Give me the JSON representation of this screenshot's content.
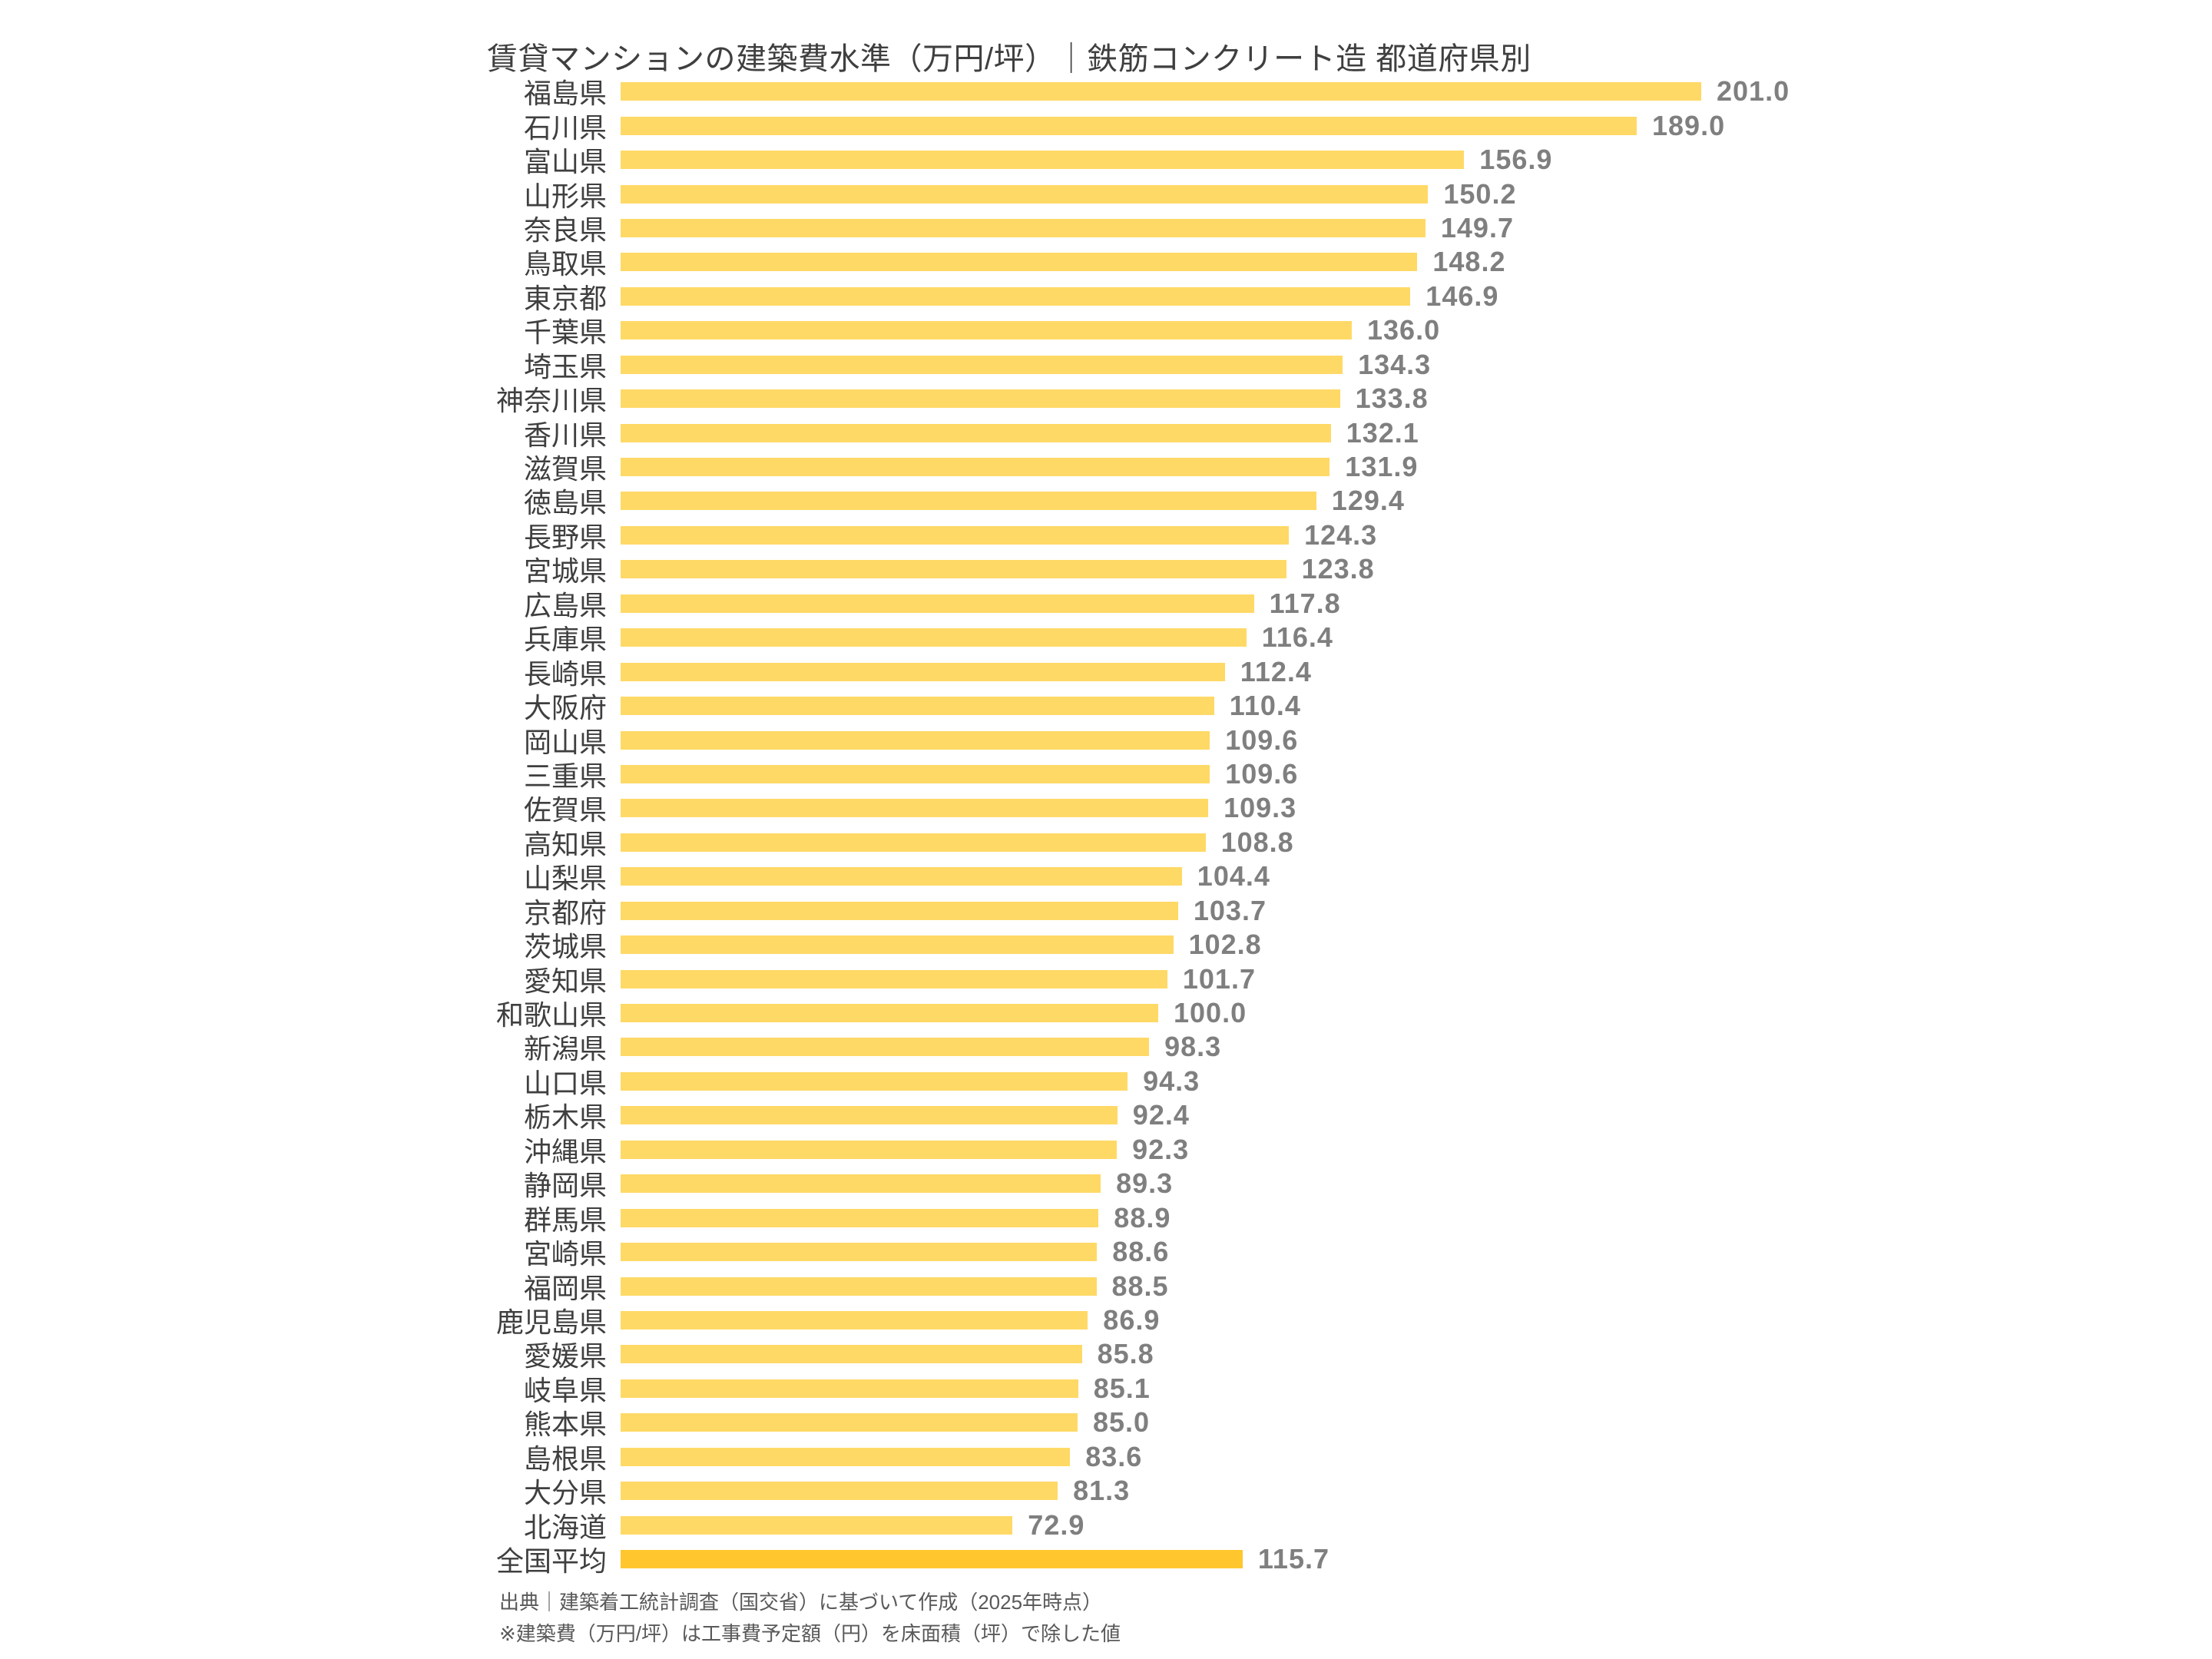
{
  "title": "賃貸マンションの建築費水準（万円/坪）｜鉄筋コンクリート造 都道府県別",
  "chart_data": {
    "type": "bar",
    "orientation": "horizontal",
    "unit": "万円/坪",
    "title": "賃貸マンションの建築費水準（万円/坪）｜鉄筋コンクリート造 都道府県別",
    "xlabel": "",
    "ylabel": "",
    "xlim": [
      0,
      210
    ],
    "grid": false,
    "axes_hidden": true,
    "value_labels": "end-of-bar, one decimal",
    "categories": [
      "福島県",
      "石川県",
      "富山県",
      "山形県",
      "奈良県",
      "鳥取県",
      "東京都",
      "千葉県",
      "埼玉県",
      "神奈川県",
      "香川県",
      "滋賀県",
      "徳島県",
      "長野県",
      "宮城県",
      "広島県",
      "兵庫県",
      "長崎県",
      "大阪府",
      "岡山県",
      "三重県",
      "佐賀県",
      "高知県",
      "山梨県",
      "京都府",
      "茨城県",
      "愛知県",
      "和歌山県",
      "新潟県",
      "山口県",
      "栃木県",
      "沖縄県",
      "静岡県",
      "群馬県",
      "宮崎県",
      "福岡県",
      "鹿児島県",
      "愛媛県",
      "岐阜県",
      "熊本県",
      "島根県",
      "大分県",
      "北海道",
      "全国平均"
    ],
    "values": [
      201.0,
      189.0,
      156.9,
      150.2,
      149.7,
      148.2,
      146.9,
      136.0,
      134.3,
      133.8,
      132.1,
      131.9,
      129.4,
      124.3,
      123.8,
      117.8,
      116.4,
      112.4,
      110.4,
      109.6,
      109.6,
      109.3,
      108.8,
      104.4,
      103.7,
      102.8,
      101.7,
      100.0,
      98.3,
      94.3,
      92.4,
      92.3,
      89.3,
      88.9,
      88.6,
      88.5,
      86.9,
      85.8,
      85.1,
      85.0,
      83.6,
      81.3,
      72.9,
      115.7
    ],
    "bar_color": "#FFD966",
    "highlight_category": "全国平均",
    "highlight_color": "#FFC62E",
    "label_color": "#3F3F3F",
    "value_label_color": "#7F7F7F",
    "title_color": "#3F3F3F"
  },
  "footer": {
    "source_note": "出典｜建築着工統計調査（国交省）に基づいて作成（2025年時点）",
    "method_note": "※建築費（万円/坪）は工事費予定額（円）を床面積（坪）で除した値"
  }
}
